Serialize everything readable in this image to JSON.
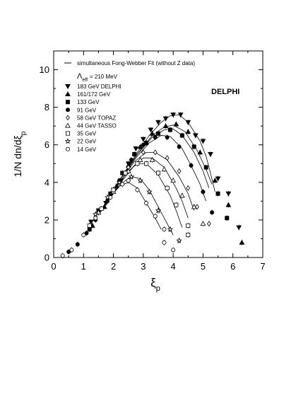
{
  "chart_data": {
    "type": "scatter",
    "ylabel_main": "1/N dn/dξ",
    "ylabel_sub": "p",
    "xlabel_main": "ξ",
    "xlabel_sub": "p",
    "watermark": "DELPHI",
    "xlim": [
      0,
      7
    ],
    "ylim": [
      0,
      11
    ],
    "x_ticks": [
      0,
      1,
      2,
      3,
      4,
      5,
      6,
      7
    ],
    "y_ticks": [
      0,
      2,
      4,
      6,
      8,
      10
    ],
    "grid": false,
    "legend_position": "top-left",
    "fit_label": "simultaneous Fong-Webber Fit (without Z data)",
    "lambda_label_main": "Λ",
    "lambda_label_sub": "eff",
    "lambda_label_value": "= 210 MeV",
    "series": [
      {
        "name": "183 GeV DELPHI",
        "marker": "tri-down",
        "filled": true,
        "points": [
          [
            1.25,
            1.9
          ],
          [
            1.5,
            2.5
          ],
          [
            1.75,
            2.9
          ],
          [
            2.0,
            3.6
          ],
          [
            2.25,
            4.1
          ],
          [
            2.5,
            5.0
          ],
          [
            2.75,
            5.8
          ],
          [
            3.0,
            6.3
          ],
          [
            3.25,
            6.8
          ],
          [
            3.5,
            7.2
          ],
          [
            3.75,
            7.4
          ],
          [
            4.0,
            7.6
          ],
          [
            4.25,
            7.6
          ],
          [
            4.5,
            7.2
          ],
          [
            4.75,
            6.5
          ],
          [
            5.0,
            6.2
          ],
          [
            5.25,
            5.5
          ],
          [
            5.5,
            4.2
          ],
          [
            5.85,
            3.4
          ],
          [
            6.2,
            1.6
          ]
        ]
      },
      {
        "name": "161/172 GeV",
        "marker": "tri-up",
        "filled": true,
        "points": [
          [
            1.3,
            1.7
          ],
          [
            1.7,
            2.7
          ],
          [
            2.1,
            3.8
          ],
          [
            2.5,
            4.9
          ],
          [
            2.9,
            5.9
          ],
          [
            3.3,
            6.6
          ],
          [
            3.75,
            7.0
          ],
          [
            4.1,
            7.1
          ],
          [
            4.5,
            6.7
          ],
          [
            4.9,
            5.6
          ],
          [
            5.4,
            4.1
          ],
          [
            5.85,
            2.8
          ],
          [
            6.3,
            0.8
          ]
        ]
      },
      {
        "name": "133 GeV",
        "marker": "square",
        "filled": true,
        "points": [
          [
            1.2,
            1.5
          ],
          [
            1.5,
            2.4
          ],
          [
            1.9,
            3.4
          ],
          [
            2.3,
            4.5
          ],
          [
            2.7,
            5.5
          ],
          [
            3.1,
            6.1
          ],
          [
            3.5,
            6.6
          ],
          [
            3.9,
            6.8
          ],
          [
            4.3,
            6.5
          ],
          [
            4.7,
            5.9
          ],
          [
            5.1,
            4.8
          ],
          [
            5.5,
            3.4
          ],
          [
            5.8,
            2.1
          ]
        ]
      },
      {
        "name": "91 GeV",
        "marker": "circle",
        "filled": true,
        "points": [
          [
            0.5,
            0.3
          ],
          [
            0.8,
            0.7
          ],
          [
            1.1,
            1.3
          ],
          [
            1.4,
            2.0
          ],
          [
            1.8,
            3.0
          ],
          [
            2.2,
            4.1
          ],
          [
            2.6,
            5.2
          ],
          [
            3.0,
            6.0
          ],
          [
            3.4,
            6.4
          ],
          [
            3.8,
            6.4
          ],
          [
            4.2,
            5.9
          ],
          [
            4.6,
            4.9
          ],
          [
            5.0,
            3.5
          ],
          [
            5.3,
            2.4
          ]
        ]
      },
      {
        "name": "58 GeV  TOPAZ",
        "marker": "diamond",
        "filled": false,
        "points": [
          [
            1.5,
            2.4
          ],
          [
            2.0,
            3.6
          ],
          [
            2.5,
            4.8
          ],
          [
            3.0,
            5.6
          ],
          [
            3.4,
            5.6
          ],
          [
            3.8,
            5.3
          ],
          [
            4.2,
            4.6
          ],
          [
            4.5,
            3.7
          ],
          [
            4.8,
            2.7
          ],
          [
            5.2,
            1.8
          ]
        ]
      },
      {
        "name": "44 GeV  TASSO",
        "marker": "tri-up",
        "filled": false,
        "points": [
          [
            1.5,
            2.4
          ],
          [
            2.0,
            3.5
          ],
          [
            2.5,
            4.6
          ],
          [
            2.9,
            5.2
          ],
          [
            3.3,
            5.2
          ],
          [
            3.7,
            4.7
          ],
          [
            4.0,
            4.1
          ],
          [
            4.3,
            3.3
          ],
          [
            4.7,
            2.7
          ],
          [
            5.0,
            1.8
          ]
        ]
      },
      {
        "name": "35 GeV",
        "marker": "square",
        "filled": false,
        "points": [
          [
            1.2,
            1.7
          ],
          [
            1.6,
            2.6
          ],
          [
            2.0,
            3.6
          ],
          [
            2.4,
            4.5
          ],
          [
            2.8,
            5.0
          ],
          [
            3.1,
            5.0
          ],
          [
            3.5,
            4.5
          ],
          [
            3.8,
            3.7
          ],
          [
            4.1,
            2.8
          ],
          [
            4.5,
            1.7
          ],
          [
            4.5,
            1.2
          ]
        ]
      },
      {
        "name": "22 GeV",
        "marker": "star",
        "filled": false,
        "points": [
          [
            1.4,
            2.3
          ],
          [
            1.8,
            3.2
          ],
          [
            2.2,
            4.0
          ],
          [
            2.6,
            4.3
          ],
          [
            2.9,
            4.1
          ],
          [
            3.2,
            3.5
          ],
          [
            3.5,
            2.5
          ],
          [
            3.9,
            1.5
          ],
          [
            4.2,
            0.9
          ]
        ]
      },
      {
        "name": "14 GeV",
        "marker": "circle",
        "filled": false,
        "points": [
          [
            0.3,
            0.1
          ],
          [
            0.6,
            0.4
          ],
          [
            1.0,
            1.2
          ],
          [
            1.4,
            2.1
          ],
          [
            1.9,
            3.2
          ],
          [
            2.3,
            3.9
          ],
          [
            2.5,
            4.1
          ],
          [
            2.8,
            3.6
          ],
          [
            3.1,
            2.9
          ],
          [
            3.4,
            2.2
          ],
          [
            3.7,
            1.5
          ],
          [
            3.7,
            0.8
          ],
          [
            4.0,
            0.4
          ]
        ]
      }
    ],
    "fits": [
      [
        [
          1.5,
          2.3
        ],
        [
          2.2,
          4.1
        ],
        [
          2.8,
          5.6
        ],
        [
          3.2,
          6.5
        ],
        [
          3.6,
          7.2
        ],
        [
          3.9,
          7.55
        ],
        [
          4.2,
          7.6
        ],
        [
          4.5,
          7.2
        ],
        [
          4.9,
          6.2
        ],
        [
          5.1,
          5.4
        ],
        [
          5.25,
          4.5
        ],
        [
          5.4,
          3.5
        ]
      ],
      [
        [
          1.5,
          2.3
        ],
        [
          2.2,
          4.1
        ],
        [
          2.8,
          5.5
        ],
        [
          3.3,
          6.5
        ],
        [
          3.7,
          6.95
        ],
        [
          4.0,
          7.05
        ],
        [
          4.4,
          6.7
        ],
        [
          4.8,
          5.7
        ],
        [
          5.1,
          4.7
        ],
        [
          5.3,
          3.9
        ]
      ],
      [
        [
          1.5,
          2.3
        ],
        [
          2.2,
          4.1
        ],
        [
          2.8,
          5.5
        ],
        [
          3.3,
          6.4
        ],
        [
          3.7,
          6.8
        ],
        [
          4.0,
          6.85
        ],
        [
          4.3,
          6.5
        ],
        [
          4.7,
          5.6
        ],
        [
          5.0,
          4.6
        ],
        [
          5.2,
          3.7
        ]
      ],
      [
        [
          1.5,
          2.3
        ],
        [
          2.2,
          4.1
        ],
        [
          2.8,
          5.4
        ],
        [
          3.2,
          6.1
        ],
        [
          3.6,
          6.5
        ],
        [
          3.9,
          6.45
        ],
        [
          4.3,
          5.8
        ],
        [
          4.6,
          4.9
        ],
        [
          4.9,
          3.9
        ],
        [
          5.1,
          3.0
        ]
      ],
      [
        [
          1.5,
          2.3
        ],
        [
          2.2,
          4.0
        ],
        [
          2.7,
          5.1
        ],
        [
          3.1,
          5.6
        ],
        [
          3.4,
          5.6
        ],
        [
          3.8,
          5.2
        ],
        [
          4.2,
          4.3
        ],
        [
          4.5,
          3.4
        ],
        [
          4.7,
          2.5
        ]
      ],
      [
        [
          1.5,
          2.3
        ],
        [
          2.2,
          3.9
        ],
        [
          2.7,
          4.9
        ],
        [
          3.0,
          5.3
        ],
        [
          3.3,
          5.3
        ],
        [
          3.7,
          4.8
        ],
        [
          4.1,
          3.7
        ],
        [
          4.3,
          3.0
        ],
        [
          4.5,
          2.1
        ]
      ],
      [
        [
          1.5,
          2.3
        ],
        [
          2.1,
          3.8
        ],
        [
          2.5,
          4.6
        ],
        [
          2.8,
          5.0
        ],
        [
          3.1,
          5.0
        ],
        [
          3.5,
          4.4
        ],
        [
          3.9,
          3.3
        ],
        [
          4.1,
          2.5
        ],
        [
          4.3,
          1.6
        ]
      ],
      [
        [
          1.5,
          2.3
        ],
        [
          2.0,
          3.5
        ],
        [
          2.4,
          4.1
        ],
        [
          2.6,
          4.3
        ],
        [
          2.9,
          4.2
        ],
        [
          3.2,
          3.6
        ],
        [
          3.5,
          2.7
        ],
        [
          3.8,
          1.8
        ],
        [
          4.0,
          1.2
        ]
      ],
      [
        [
          1.5,
          2.3
        ],
        [
          1.9,
          3.2
        ],
        [
          2.2,
          3.8
        ],
        [
          2.5,
          4.0
        ],
        [
          2.8,
          3.7
        ],
        [
          3.1,
          2.9
        ],
        [
          3.4,
          2.1
        ],
        [
          3.6,
          1.5
        ]
      ]
    ]
  }
}
